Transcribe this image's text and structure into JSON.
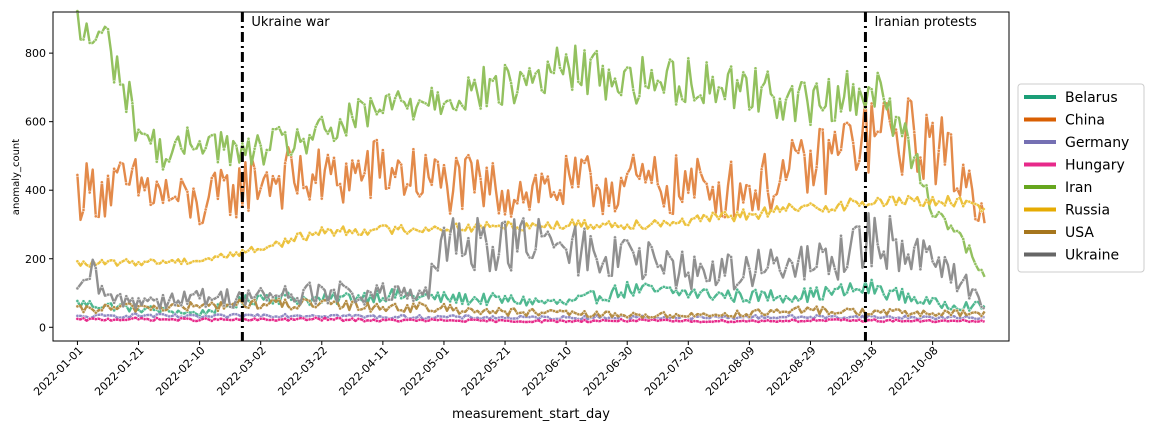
{
  "chart_data": {
    "type": "line",
    "xlabel": "measurement_start_day",
    "ylabel": "anomaly_count",
    "x_range": [
      "2021-12-24",
      "2022-11-02"
    ],
    "ylim": [
      -40,
      920
    ],
    "yticks": [
      0,
      200,
      400,
      600,
      800
    ],
    "xticks": [
      "2022-01-01",
      "2022-01-21",
      "2022-02-10",
      "2022-03-02",
      "2022-03-22",
      "2022-04-11",
      "2022-05-01",
      "2022-05-21",
      "2022-06-10",
      "2022-06-30",
      "2022-07-20",
      "2022-08-09",
      "2022-08-29",
      "2022-09-18",
      "2022-10-08"
    ],
    "grid": false,
    "legend_position": "right",
    "events": [
      {
        "date": "2022-02-24",
        "label": "Ukraine war"
      },
      {
        "date": "2022-09-16",
        "label": "Iranian protests"
      }
    ],
    "series": [
      {
        "name": "Belarus",
        "color": "#1b9e77",
        "line_color": "#4fb890",
        "points": [
          [
            "2022-01-01",
            70
          ],
          [
            "2022-01-21",
            55
          ],
          [
            "2022-02-10",
            40
          ],
          [
            "2022-03-02",
            90
          ],
          [
            "2022-03-22",
            80
          ],
          [
            "2022-04-11",
            95
          ],
          [
            "2022-05-01",
            85
          ],
          [
            "2022-05-21",
            80
          ],
          [
            "2022-06-10",
            70
          ],
          [
            "2022-06-30",
            110
          ],
          [
            "2022-07-20",
            100
          ],
          [
            "2022-08-09",
            90
          ],
          [
            "2022-08-29",
            95
          ],
          [
            "2022-09-18",
            115
          ],
          [
            "2022-10-08",
            70
          ],
          [
            "2022-10-25",
            60
          ]
        ]
      },
      {
        "name": "China",
        "color": "#d95f02",
        "line_color": "#e38a4a",
        "points": [
          [
            "2022-01-01",
            400
          ],
          [
            "2022-01-21",
            410
          ],
          [
            "2022-02-10",
            350
          ],
          [
            "2022-03-02",
            440
          ],
          [
            "2022-03-22",
            430
          ],
          [
            "2022-04-11",
            460
          ],
          [
            "2022-05-01",
            420
          ],
          [
            "2022-05-21",
            400
          ],
          [
            "2022-06-10",
            410
          ],
          [
            "2022-06-30",
            420
          ],
          [
            "2022-07-20",
            410
          ],
          [
            "2022-08-09",
            400
          ],
          [
            "2022-08-29",
            470
          ],
          [
            "2022-09-18",
            570
          ],
          [
            "2022-10-08",
            540
          ],
          [
            "2022-10-25",
            360
          ]
        ]
      },
      {
        "name": "Germany",
        "color": "#7570b3",
        "line_color": "#8f8bc4",
        "points": [
          [
            "2022-01-01",
            30
          ],
          [
            "2022-01-21",
            35
          ],
          [
            "2022-02-10",
            30
          ],
          [
            "2022-03-02",
            35
          ],
          [
            "2022-03-22",
            35
          ],
          [
            "2022-04-11",
            30
          ],
          [
            "2022-05-01",
            30
          ],
          [
            "2022-05-21",
            28
          ],
          [
            "2022-06-10",
            28
          ],
          [
            "2022-06-30",
            30
          ],
          [
            "2022-07-20",
            28
          ],
          [
            "2022-08-09",
            30
          ],
          [
            "2022-08-29",
            30
          ],
          [
            "2022-09-18",
            30
          ],
          [
            "2022-10-08",
            28
          ],
          [
            "2022-10-25",
            28
          ]
        ]
      },
      {
        "name": "Hungary",
        "color": "#e7298a",
        "line_color": "#e7298a",
        "points": [
          [
            "2022-01-01",
            22
          ],
          [
            "2022-01-21",
            24
          ],
          [
            "2022-02-10",
            22
          ],
          [
            "2022-03-02",
            22
          ],
          [
            "2022-03-22",
            24
          ],
          [
            "2022-04-11",
            20
          ],
          [
            "2022-05-01",
            20
          ],
          [
            "2022-05-21",
            18
          ],
          [
            "2022-06-10",
            18
          ],
          [
            "2022-06-30",
            20
          ],
          [
            "2022-07-20",
            18
          ],
          [
            "2022-08-09",
            18
          ],
          [
            "2022-08-29",
            20
          ],
          [
            "2022-09-18",
            20
          ],
          [
            "2022-10-08",
            18
          ],
          [
            "2022-10-25",
            18
          ]
        ]
      },
      {
        "name": "Iran",
        "color": "#66a61e",
        "line_color": "#93c15f",
        "points": [
          [
            "2022-01-01",
            860
          ],
          [
            "2022-01-11",
            830
          ],
          [
            "2022-01-21",
            580
          ],
          [
            "2022-01-31",
            490
          ],
          [
            "2022-02-10",
            560
          ],
          [
            "2022-02-24",
            500
          ],
          [
            "2022-03-02",
            520
          ],
          [
            "2022-03-22",
            560
          ],
          [
            "2022-04-11",
            640
          ],
          [
            "2022-05-01",
            680
          ],
          [
            "2022-05-21",
            700
          ],
          [
            "2022-06-10",
            760
          ],
          [
            "2022-06-30",
            720
          ],
          [
            "2022-07-20",
            720
          ],
          [
            "2022-08-09",
            700
          ],
          [
            "2022-08-29",
            650
          ],
          [
            "2022-09-18",
            700
          ],
          [
            "2022-09-28",
            580
          ],
          [
            "2022-10-08",
            360
          ],
          [
            "2022-10-18",
            250
          ],
          [
            "2022-10-25",
            140
          ]
        ]
      },
      {
        "name": "Russia",
        "color": "#e6ab02",
        "line_color": "#ecc23d",
        "points": [
          [
            "2022-01-01",
            185
          ],
          [
            "2022-01-21",
            190
          ],
          [
            "2022-02-10",
            195
          ],
          [
            "2022-03-02",
            230
          ],
          [
            "2022-03-22",
            280
          ],
          [
            "2022-04-11",
            285
          ],
          [
            "2022-05-01",
            290
          ],
          [
            "2022-05-21",
            295
          ],
          [
            "2022-06-10",
            300
          ],
          [
            "2022-06-30",
            300
          ],
          [
            "2022-07-20",
            310
          ],
          [
            "2022-08-09",
            330
          ],
          [
            "2022-08-29",
            350
          ],
          [
            "2022-09-18",
            365
          ],
          [
            "2022-10-08",
            370
          ],
          [
            "2022-10-25",
            355
          ]
        ]
      },
      {
        "name": "USA",
        "color": "#a6761d",
        "line_color": "#b58d45",
        "points": [
          [
            "2022-01-01",
            50
          ],
          [
            "2022-01-21",
            60
          ],
          [
            "2022-02-10",
            60
          ],
          [
            "2022-03-02",
            70
          ],
          [
            "2022-03-22",
            65
          ],
          [
            "2022-04-11",
            60
          ],
          [
            "2022-05-01",
            55
          ],
          [
            "2022-05-21",
            45
          ],
          [
            "2022-06-10",
            40
          ],
          [
            "2022-06-30",
            35
          ],
          [
            "2022-07-20",
            35
          ],
          [
            "2022-08-09",
            40
          ],
          [
            "2022-08-29",
            50
          ],
          [
            "2022-09-18",
            45
          ],
          [
            "2022-10-08",
            40
          ],
          [
            "2022-10-25",
            40
          ]
        ]
      },
      {
        "name": "Ukraine",
        "color": "#666666",
        "line_color": "#909090",
        "points": [
          [
            "2022-01-01",
            85
          ],
          [
            "2022-01-05",
            160
          ],
          [
            "2022-01-11",
            80
          ],
          [
            "2022-01-21",
            80
          ],
          [
            "2022-02-10",
            85
          ],
          [
            "2022-03-02",
            90
          ],
          [
            "2022-03-22",
            100
          ],
          [
            "2022-04-11",
            95
          ],
          [
            "2022-04-25",
            90
          ],
          [
            "2022-05-01",
            240
          ],
          [
            "2022-05-21",
            250
          ],
          [
            "2022-06-10",
            230
          ],
          [
            "2022-06-30",
            200
          ],
          [
            "2022-07-20",
            160
          ],
          [
            "2022-08-09",
            170
          ],
          [
            "2022-08-29",
            180
          ],
          [
            "2022-09-18",
            250
          ],
          [
            "2022-10-08",
            230
          ],
          [
            "2022-10-25",
            60
          ]
        ]
      }
    ]
  }
}
